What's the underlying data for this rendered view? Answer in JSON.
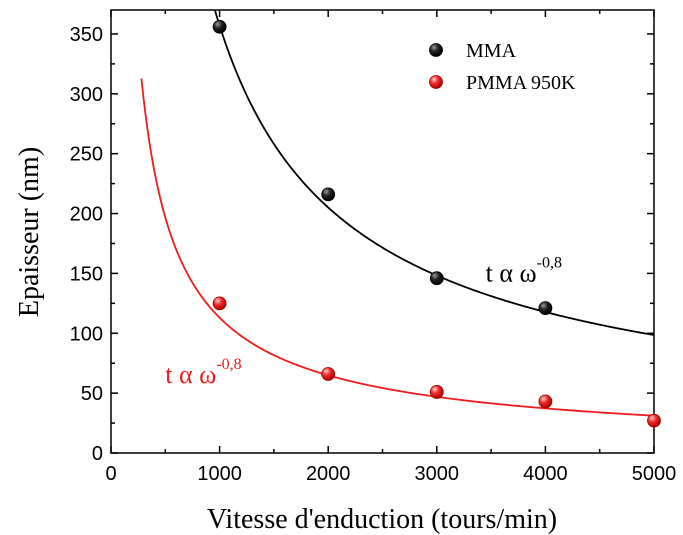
{
  "chart_data": {
    "type": "scatter",
    "xlabel": "Vitesse d'enduction (tours/min)",
    "ylabel": "Epaisseur (nm)",
    "xlim": [
      0,
      5000
    ],
    "ylim": [
      0,
      370
    ],
    "x_ticks": [
      0,
      1000,
      2000,
      3000,
      4000,
      5000
    ],
    "y_ticks": [
      0,
      50,
      100,
      150,
      200,
      250,
      300,
      350
    ],
    "grid": false,
    "legend_position": "top-right",
    "series": [
      {
        "name": "MMA",
        "color": "#000000",
        "x": [
          1000,
          2000,
          3000,
          4000
        ],
        "y": [
          356,
          216,
          146,
          121
        ],
        "fit": {
          "form": "power",
          "exponent": -0.8,
          "coefficient": 357,
          "x_ref": 1000,
          "x_start": 950
        }
      },
      {
        "name": "PMMA 950K",
        "color": "#ee1c1c",
        "x": [
          1000,
          2000,
          3000,
          4000,
          5000
        ],
        "y": [
          125,
          66,
          51,
          43,
          27
        ],
        "fit": {
          "form": "power",
          "exponent": -0.8,
          "coefficient": 113,
          "x_ref": 1000,
          "x_start": 280
        }
      }
    ],
    "annotations": [
      {
        "text": "t α ω",
        "superscript": "-0,8",
        "color": "#000000",
        "x": 3450,
        "y": 150
      },
      {
        "text": "t α ω",
        "superscript": "-0,8",
        "color": "#ee1c1c",
        "x": 500,
        "y": 65
      }
    ]
  }
}
